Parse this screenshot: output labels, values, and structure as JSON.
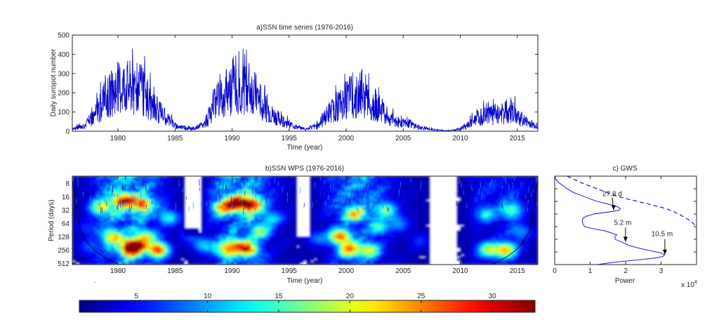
{
  "chart_data": [
    {
      "type": "line",
      "title": "a)SSN time series (1976-2016)",
      "xlabel": "Time (year)",
      "ylabel": "Daily sunspot number",
      "xlim": [
        1976,
        2016.8
      ],
      "ylim": [
        0,
        500
      ],
      "xticks": [
        1980,
        1985,
        1990,
        1995,
        2000,
        2005,
        2010,
        2015
      ],
      "yticks": [
        0,
        100,
        200,
        300,
        400,
        500
      ],
      "color": "#0000cc",
      "series": [
        {
          "x": [
            1976.0,
            1977.0,
            1978.0,
            1979.0,
            1979.8,
            1980.5,
            1981.2,
            1982.0,
            1983.0,
            1984.0,
            1985.0,
            1986.0,
            1986.7,
            1987.5,
            1988.5,
            1989.3,
            1990.0,
            1990.8,
            1991.5,
            1992.5,
            1993.5,
            1994.5,
            1995.5,
            1996.5,
            1997.5,
            1998.5,
            1999.5,
            2000.3,
            2001.0,
            2001.8,
            2002.5,
            2003.5,
            2004.5,
            2005.5,
            2006.5,
            2007.5,
            2008.5,
            2009.5,
            2010.5,
            2011.5,
            2012.3,
            2013.0,
            2013.8,
            2014.3,
            2015.0,
            2015.8,
            2016.8
          ],
          "y": [
            15,
            25,
            90,
            180,
            230,
            250,
            240,
            230,
            140,
            90,
            30,
            15,
            15,
            35,
            130,
            210,
            230,
            220,
            240,
            160,
            90,
            50,
            25,
            10,
            30,
            100,
            140,
            190,
            185,
            160,
            150,
            90,
            50,
            40,
            20,
            10,
            3,
            5,
            25,
            70,
            90,
            85,
            100,
            120,
            80,
            50,
            25
          ]
        }
      ]
    },
    {
      "type": "heatmap",
      "title": "b)SSN WPS (1976-2016)",
      "xlabel": "Time (year)",
      "ylabel": "Period (days)",
      "xlim": [
        1976,
        2016.8
      ],
      "xticks": [
        1980,
        1985,
        1990,
        1995,
        2000,
        2005,
        2010,
        2015
      ],
      "yticks": [
        8,
        16,
        32,
        64,
        128,
        256,
        512
      ],
      "yscale": "log2",
      "blobs": [
        {
          "x": 1981,
          "p": 256,
          "v": 28
        },
        {
          "x": 1983.5,
          "p": 256,
          "v": 33
        },
        {
          "x": 1981.5,
          "p": 200,
          "v": 30
        },
        {
          "x": 1979.5,
          "p": 128,
          "v": 24
        },
        {
          "x": 1982.5,
          "p": 128,
          "v": 22
        },
        {
          "x": 1980.5,
          "p": 20,
          "v": 30
        },
        {
          "x": 1982.2,
          "p": 24,
          "v": 26
        },
        {
          "x": 1978.5,
          "p": 28,
          "v": 22
        },
        {
          "x": 1984.5,
          "p": 48,
          "v": 18
        },
        {
          "x": 1989.5,
          "p": 256,
          "v": 24
        },
        {
          "x": 1991.5,
          "p": 256,
          "v": 26
        },
        {
          "x": 1990.5,
          "p": 200,
          "v": 22
        },
        {
          "x": 1990.5,
          "p": 22,
          "v": 31
        },
        {
          "x": 1991.8,
          "p": 24,
          "v": 30
        },
        {
          "x": 1989.2,
          "p": 28,
          "v": 24
        },
        {
          "x": 1992.5,
          "p": 96,
          "v": 20
        },
        {
          "x": 1993.5,
          "p": 50,
          "v": 16
        },
        {
          "x": 2000.3,
          "p": 256,
          "v": 27
        },
        {
          "x": 2002.0,
          "p": 256,
          "v": 23
        },
        {
          "x": 1999.5,
          "p": 128,
          "v": 30
        },
        {
          "x": 2000.8,
          "p": 40,
          "v": 22
        },
        {
          "x": 2002.8,
          "p": 80,
          "v": 18
        },
        {
          "x": 2003.5,
          "p": 32,
          "v": 20
        },
        {
          "x": 2004.5,
          "p": 64,
          "v": 15
        },
        {
          "x": 1997.5,
          "p": 140,
          "v": 14
        },
        {
          "x": 2014.0,
          "p": 256,
          "v": 27
        },
        {
          "x": 2012.5,
          "p": 256,
          "v": 23
        },
        {
          "x": 2014.5,
          "p": 32,
          "v": 19
        },
        {
          "x": 2012.3,
          "p": 40,
          "v": 16
        },
        {
          "x": 2015.3,
          "p": 100,
          "v": 15
        },
        {
          "x": 1987.5,
          "p": 200,
          "v": 17
        },
        {
          "x": 1986.3,
          "p": 120,
          "v": 13
        },
        {
          "x": 2006.5,
          "p": 160,
          "v": 12
        },
        {
          "x": 1977.3,
          "p": 80,
          "v": 12
        },
        {
          "x": 1977.5,
          "p": 220,
          "v": 13
        }
      ],
      "colorbar": {
        "min": 1,
        "max": 33,
        "ticks": [
          5,
          10,
          15,
          20,
          25,
          30
        ]
      }
    },
    {
      "type": "line",
      "title": "c) GWS",
      "xlabel": "Power",
      "xlim": [
        0,
        4
      ],
      "xticks": [
        0,
        1,
        2,
        3
      ],
      "x_exponent_label": "x 10",
      "x_exponent": "4",
      "ylim_period": [
        4,
        512
      ],
      "yscale": "log2",
      "series": [
        {
          "style": "solid",
          "period": [
            4,
            5,
            6,
            8,
            10,
            12,
            14,
            16,
            18,
            20,
            22,
            24,
            26,
            28,
            32,
            36,
            40,
            44,
            48,
            56,
            64,
            72,
            80,
            90,
            100,
            112,
            128,
            150,
            180,
            210,
            240,
            270,
            300,
            330,
            360,
            400,
            450,
            512
          ],
          "power": [
            0.0,
            0.05,
            0.15,
            0.35,
            0.55,
            0.8,
            1.0,
            1.2,
            1.45,
            1.65,
            1.8,
            1.85,
            1.82,
            1.6,
            1.1,
            0.9,
            0.8,
            0.78,
            0.78,
            0.8,
            0.85,
            1.1,
            1.4,
            1.6,
            1.75,
            1.7,
            1.7,
            1.9,
            2.1,
            2.4,
            2.7,
            3.0,
            3.1,
            3.05,
            2.8,
            2.3,
            1.7,
            1.2
          ]
        },
        {
          "style": "dashed",
          "period": [
            4,
            6,
            8,
            10,
            12,
            14,
            16,
            18,
            20,
            22,
            24,
            28,
            32,
            40,
            48,
            64
          ],
          "power": [
            0.35,
            0.8,
            1.2,
            1.5,
            1.75,
            2.05,
            2.35,
            2.6,
            2.8,
            3.0,
            3.15,
            3.35,
            3.5,
            3.7,
            3.85,
            4.0
          ]
        }
      ],
      "annotations": [
        {
          "text": "27.8 d",
          "period": 27.8
        },
        {
          "text": "5.2 m",
          "period": 158
        },
        {
          "text": "10.5 m",
          "period": 319
        }
      ]
    }
  ]
}
